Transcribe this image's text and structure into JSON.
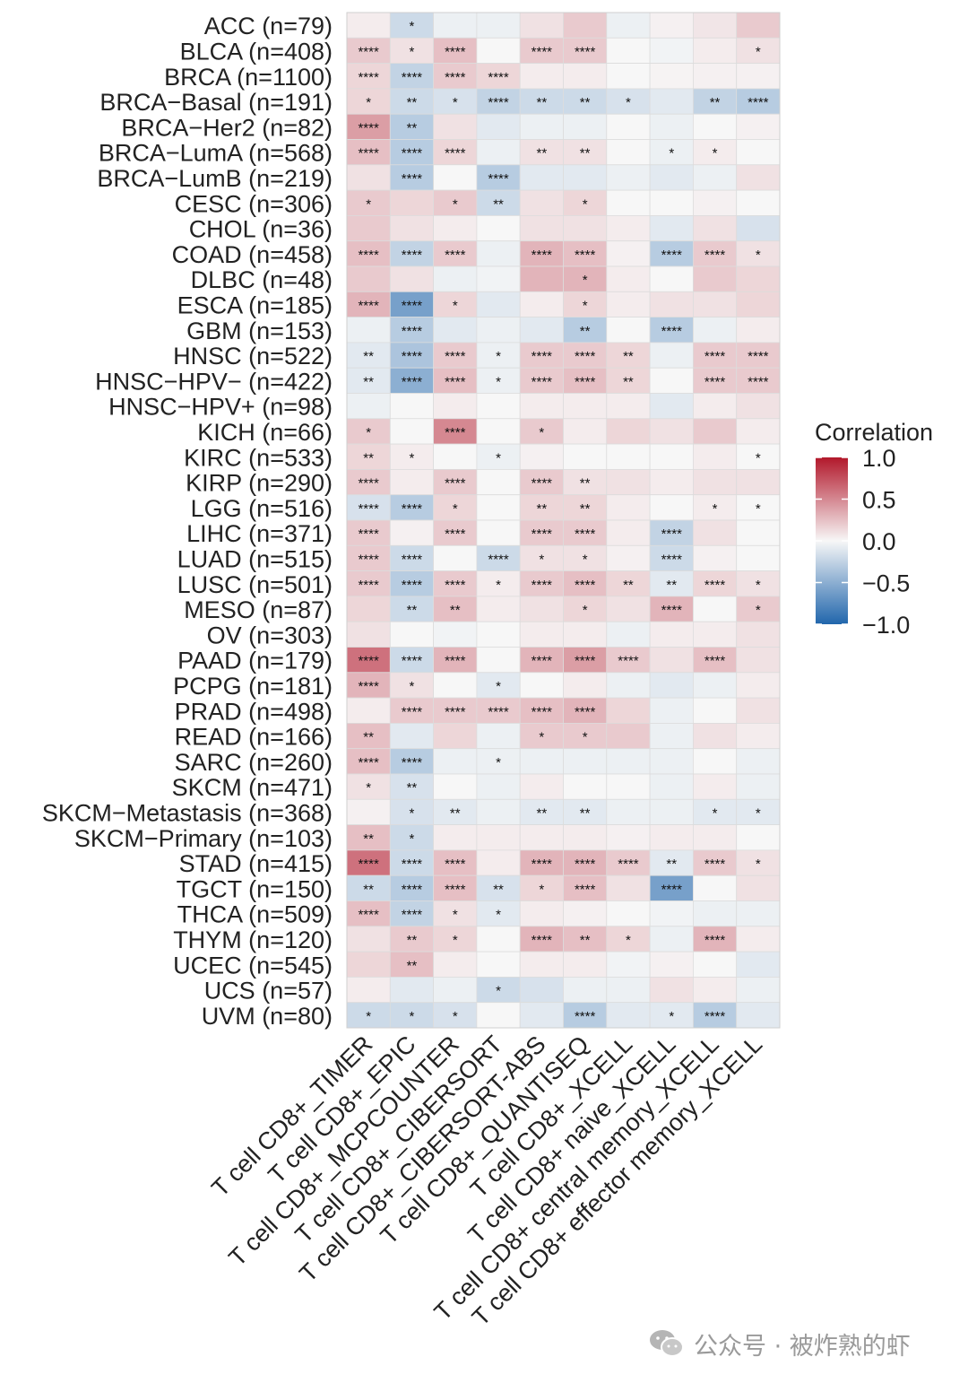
{
  "chart_data": {
    "type": "heatmap",
    "rows": [
      "ACC (n=79)",
      "BLCA (n=408)",
      "BRCA (n=1100)",
      "BRCA−Basal (n=191)",
      "BRCA−Her2 (n=82)",
      "BRCA−LumA (n=568)",
      "BRCA−LumB (n=219)",
      "CESC (n=306)",
      "CHOL (n=36)",
      "COAD (n=458)",
      "DLBC (n=48)",
      "ESCA (n=185)",
      "GBM (n=153)",
      "HNSC (n=522)",
      "HNSC−HPV− (n=422)",
      "HNSC−HPV+ (n=98)",
      "KICH (n=66)",
      "KIRC (n=533)",
      "KIRP (n=290)",
      "LGG (n=516)",
      "LIHC (n=371)",
      "LUAD (n=515)",
      "LUSC (n=501)",
      "MESO (n=87)",
      "OV (n=303)",
      "PAAD (n=179)",
      "PCPG (n=181)",
      "PRAD (n=498)",
      "READ (n=166)",
      "SARC (n=260)",
      "SKCM (n=471)",
      "SKCM−Metastasis (n=368)",
      "SKCM−Primary (n=103)",
      "STAD (n=415)",
      "TGCT (n=150)",
      "THCA (n=509)",
      "THYM (n=120)",
      "UCEC (n=545)",
      "UCS (n=57)",
      "UVM (n=80)"
    ],
    "columns": [
      "T cell CD8+_TIMER",
      "T cell CD8+_EPIC",
      "T cell CD8+_MCPCOUNTER",
      "T cell CD8+_CIBERSORT",
      "T cell CD8+_CIBERSORT-ABS",
      "T cell CD8+_QUANTISEQ",
      "T cell CD8+_XCELL",
      "T cell CD8+ naive_XCELL",
      "T cell CD8+ central memory_XCELL",
      "T cell CD8+ effector memory_XCELL"
    ],
    "values": [
      [
        0.05,
        -0.2,
        -0.05,
        -0.05,
        0.1,
        0.2,
        -0.05,
        0.03,
        0.08,
        0.2
      ],
      [
        0.2,
        0.1,
        0.25,
        0.0,
        0.2,
        0.2,
        0.0,
        -0.03,
        0.05,
        0.1
      ],
      [
        0.15,
        -0.25,
        0.2,
        0.15,
        0.05,
        0.05,
        0.0,
        0.02,
        0.03,
        0.03
      ],
      [
        0.15,
        -0.2,
        -0.15,
        -0.25,
        -0.2,
        -0.2,
        -0.15,
        -0.1,
        -0.25,
        -0.3
      ],
      [
        0.4,
        -0.3,
        0.1,
        -0.1,
        -0.05,
        -0.05,
        0.0,
        -0.05,
        0.0,
        0.03
      ],
      [
        0.25,
        -0.3,
        0.15,
        -0.05,
        0.1,
        0.1,
        0.0,
        -0.05,
        0.05,
        0.0
      ],
      [
        0.1,
        -0.3,
        0.0,
        -0.3,
        -0.1,
        -0.1,
        -0.05,
        -0.1,
        -0.05,
        0.1
      ],
      [
        0.2,
        0.15,
        0.2,
        -0.2,
        0.1,
        0.15,
        0.0,
        0.0,
        0.03,
        0.0
      ],
      [
        0.2,
        0.1,
        0.05,
        0.0,
        0.1,
        0.1,
        0.05,
        -0.1,
        0.1,
        -0.15
      ],
      [
        0.25,
        -0.25,
        0.2,
        -0.05,
        0.3,
        0.25,
        0.03,
        -0.3,
        0.2,
        0.1
      ],
      [
        0.2,
        0.1,
        -0.05,
        -0.03,
        0.3,
        0.3,
        0.05,
        0.0,
        0.2,
        0.15
      ],
      [
        0.3,
        -0.6,
        0.15,
        -0.1,
        0.05,
        0.15,
        0.05,
        0.1,
        0.1,
        0.15
      ],
      [
        -0.05,
        -0.3,
        -0.1,
        -0.05,
        -0.1,
        -0.3,
        0.0,
        -0.3,
        -0.05,
        0.05
      ],
      [
        -0.1,
        -0.35,
        0.2,
        -0.05,
        0.2,
        0.2,
        0.15,
        -0.05,
        0.2,
        0.2
      ],
      [
        -0.1,
        -0.5,
        0.25,
        -0.05,
        0.2,
        0.25,
        0.15,
        0.0,
        0.2,
        0.2
      ],
      [
        -0.05,
        0.0,
        0.05,
        0.0,
        0.05,
        0.05,
        0.05,
        -0.1,
        0.05,
        0.1
      ],
      [
        0.2,
        0.0,
        0.5,
        0.0,
        0.2,
        0.05,
        0.15,
        0.1,
        0.2,
        0.05
      ],
      [
        0.15,
        0.05,
        0.0,
        -0.05,
        0.03,
        0.0,
        0.0,
        0.0,
        0.05,
        0.0
      ],
      [
        0.2,
        0.05,
        0.2,
        0.0,
        0.2,
        0.1,
        0.1,
        0.05,
        0.1,
        0.1
      ],
      [
        -0.15,
        -0.3,
        0.15,
        0.0,
        0.15,
        0.15,
        0.05,
        0.0,
        0.05,
        0.0
      ],
      [
        0.2,
        0.03,
        0.2,
        0.0,
        0.2,
        0.2,
        0.05,
        -0.25,
        0.1,
        0.0
      ],
      [
        0.2,
        -0.2,
        0.0,
        -0.2,
        0.1,
        0.1,
        0.03,
        -0.2,
        0.03,
        0.0
      ],
      [
        0.2,
        -0.3,
        0.2,
        0.05,
        0.2,
        0.25,
        0.15,
        -0.1,
        0.15,
        0.1
      ],
      [
        0.15,
        -0.2,
        0.25,
        0.05,
        0.1,
        0.15,
        0.1,
        0.3,
        0.0,
        0.2
      ],
      [
        0.1,
        0.0,
        -0.03,
        0.0,
        0.05,
        0.05,
        -0.05,
        0.05,
        0.05,
        0.1
      ],
      [
        0.6,
        -0.2,
        0.3,
        0.0,
        0.3,
        0.4,
        0.2,
        0.1,
        0.25,
        0.1
      ],
      [
        0.3,
        0.1,
        0.0,
        -0.1,
        0.0,
        0.05,
        -0.05,
        -0.1,
        -0.05,
        0.05
      ],
      [
        0.05,
        0.2,
        0.2,
        0.2,
        0.25,
        0.3,
        0.15,
        -0.05,
        0.0,
        0.1
      ],
      [
        0.25,
        -0.1,
        0.15,
        -0.05,
        0.2,
        0.2,
        0.2,
        -0.05,
        0.1,
        0.05
      ],
      [
        0.25,
        -0.3,
        -0.05,
        -0.05,
        -0.05,
        -0.05,
        -0.05,
        -0.05,
        0.0,
        -0.05
      ],
      [
        0.1,
        -0.15,
        0.0,
        -0.05,
        0.05,
        0.0,
        0.0,
        -0.05,
        0.05,
        -0.05
      ],
      [
        0.03,
        -0.15,
        -0.1,
        -0.05,
        -0.1,
        -0.1,
        -0.05,
        -0.05,
        -0.1,
        -0.1
      ],
      [
        0.25,
        -0.2,
        0.05,
        0.05,
        0.05,
        0.05,
        0.03,
        0.05,
        0.05,
        0.0
      ],
      [
        0.6,
        -0.2,
        0.25,
        0.05,
        0.3,
        0.3,
        0.2,
        -0.1,
        0.2,
        0.1
      ],
      [
        -0.2,
        -0.3,
        0.25,
        -0.15,
        0.15,
        0.25,
        0.1,
        -0.6,
        0.0,
        0.1
      ],
      [
        0.25,
        -0.25,
        0.1,
        -0.1,
        0.05,
        0.03,
        0.0,
        -0.03,
        -0.05,
        -0.05
      ],
      [
        0.1,
        0.2,
        0.15,
        0.0,
        0.3,
        0.25,
        0.15,
        -0.05,
        0.3,
        0.05
      ],
      [
        0.15,
        0.25,
        0.05,
        0.0,
        0.05,
        0.05,
        -0.03,
        0.03,
        0.0,
        -0.1
      ],
      [
        0.05,
        -0.1,
        -0.05,
        -0.2,
        -0.15,
        -0.05,
        -0.05,
        0.1,
        0.05,
        -0.05
      ],
      [
        -0.2,
        -0.2,
        -0.15,
        0.0,
        -0.1,
        -0.3,
        -0.1,
        -0.1,
        -0.3,
        -0.1
      ]
    ],
    "significance": [
      [
        "",
        "*",
        "",
        "",
        "",
        "",
        "",
        "",
        "",
        ""
      ],
      [
        "****",
        "*",
        "****",
        "",
        "****",
        "****",
        "",
        "",
        "",
        "*"
      ],
      [
        "****",
        "****",
        "****",
        "****",
        "",
        "",
        "",
        "",
        "",
        ""
      ],
      [
        "*",
        "**",
        "*",
        "****",
        "**",
        "**",
        "*",
        "",
        "**",
        "****"
      ],
      [
        "****",
        "**",
        "",
        "",
        "",
        "",
        "",
        "",
        "",
        ""
      ],
      [
        "****",
        "****",
        "****",
        "",
        "**",
        "**",
        "",
        "*",
        "*",
        ""
      ],
      [
        "",
        "****",
        "",
        "****",
        "",
        "",
        "",
        "",
        "",
        ""
      ],
      [
        "*",
        "",
        "*",
        "**",
        "",
        "*",
        "",
        "",
        "",
        ""
      ],
      [
        "",
        "",
        "",
        "",
        "",
        "",
        "",
        "",
        "",
        ""
      ],
      [
        "****",
        "****",
        "****",
        "",
        "****",
        "****",
        "",
        "****",
        "****",
        "*"
      ],
      [
        "",
        "",
        "",
        "",
        "",
        "*",
        "",
        "",
        "",
        ""
      ],
      [
        "****",
        "****",
        "*",
        "",
        "",
        "*",
        "",
        "",
        "",
        ""
      ],
      [
        "",
        "****",
        "",
        "",
        "",
        "**",
        "",
        "****",
        "",
        ""
      ],
      [
        "**",
        "****",
        "****",
        "*",
        "****",
        "****",
        "**",
        "",
        "****",
        "****"
      ],
      [
        "**",
        "****",
        "****",
        "*",
        "****",
        "****",
        "**",
        "",
        "****",
        "****"
      ],
      [
        "",
        "",
        "",
        "",
        "",
        "",
        "",
        "",
        "",
        ""
      ],
      [
        "*",
        "",
        "****",
        "",
        "*",
        "",
        "",
        "",
        "",
        ""
      ],
      [
        "**",
        "*",
        "",
        "*",
        "",
        "",
        "",
        "",
        "",
        "*"
      ],
      [
        "****",
        "",
        "****",
        "",
        "****",
        "**",
        "",
        "",
        "",
        ""
      ],
      [
        "****",
        "****",
        "*",
        "",
        "**",
        "**",
        "",
        "",
        "*",
        "*"
      ],
      [
        "****",
        "",
        "****",
        "",
        "****",
        "****",
        "",
        "****",
        "",
        ""
      ],
      [
        "****",
        "****",
        "",
        "****",
        "*",
        "*",
        "",
        "****",
        "",
        ""
      ],
      [
        "****",
        "****",
        "****",
        "*",
        "****",
        "****",
        "**",
        "**",
        "****",
        "*"
      ],
      [
        "",
        "**",
        "**",
        "",
        "",
        "*",
        "",
        "****",
        "",
        "*"
      ],
      [
        "",
        "",
        "",
        "",
        "",
        "",
        "",
        "",
        "",
        ""
      ],
      [
        "****",
        "****",
        "****",
        "",
        "****",
        "****",
        "****",
        "",
        "****",
        ""
      ],
      [
        "****",
        "*",
        "",
        "*",
        "",
        "",
        "",
        "",
        "",
        ""
      ],
      [
        "",
        "****",
        "****",
        "****",
        "****",
        "****",
        "",
        "",
        "",
        ""
      ],
      [
        "**",
        "",
        "",
        "",
        "*",
        "*",
        "",
        "",
        "",
        ""
      ],
      [
        "****",
        "****",
        "",
        "*",
        "",
        "",
        "",
        "",
        "",
        ""
      ],
      [
        "*",
        "**",
        "",
        "",
        "",
        "",
        "",
        "",
        "",
        ""
      ],
      [
        "",
        "*",
        "**",
        "",
        "**",
        "**",
        "",
        "",
        "*",
        "*"
      ],
      [
        "**",
        "*",
        "",
        "",
        "",
        "",
        "",
        "",
        "",
        ""
      ],
      [
        "****",
        "****",
        "****",
        "",
        "****",
        "****",
        "****",
        "**",
        "****",
        "*"
      ],
      [
        "**",
        "****",
        "****",
        "**",
        "*",
        "****",
        "",
        "****",
        "",
        ""
      ],
      [
        "****",
        "****",
        "*",
        "*",
        "",
        "",
        "",
        "",
        "",
        ""
      ],
      [
        "",
        "**",
        "*",
        "",
        "****",
        "**",
        "*",
        "",
        "****",
        ""
      ],
      [
        "",
        "**",
        "",
        "",
        "",
        "",
        "",
        "",
        "",
        ""
      ],
      [
        "",
        "",
        "",
        "*",
        "",
        "",
        "",
        "",
        "",
        ""
      ],
      [
        "*",
        "*",
        "*",
        "",
        "",
        "****",
        "",
        "*",
        "****",
        ""
      ]
    ],
    "color_scale": {
      "min": -1.0,
      "max": 1.0,
      "low": "#2166ac",
      "mid": "#f7f7f7",
      "high": "#b2182b"
    },
    "legend": {
      "title": "Correlation",
      "ticks": [
        "1.0",
        "0.5",
        "0.0",
        "−0.5",
        "−1.0"
      ],
      "tick_values": [
        1.0,
        0.5,
        0.0,
        -0.5,
        -1.0
      ],
      "position": "right"
    }
  },
  "watermark": {
    "text": "公众号 · 被炸熟的虾",
    "icon": "wechat-icon"
  }
}
